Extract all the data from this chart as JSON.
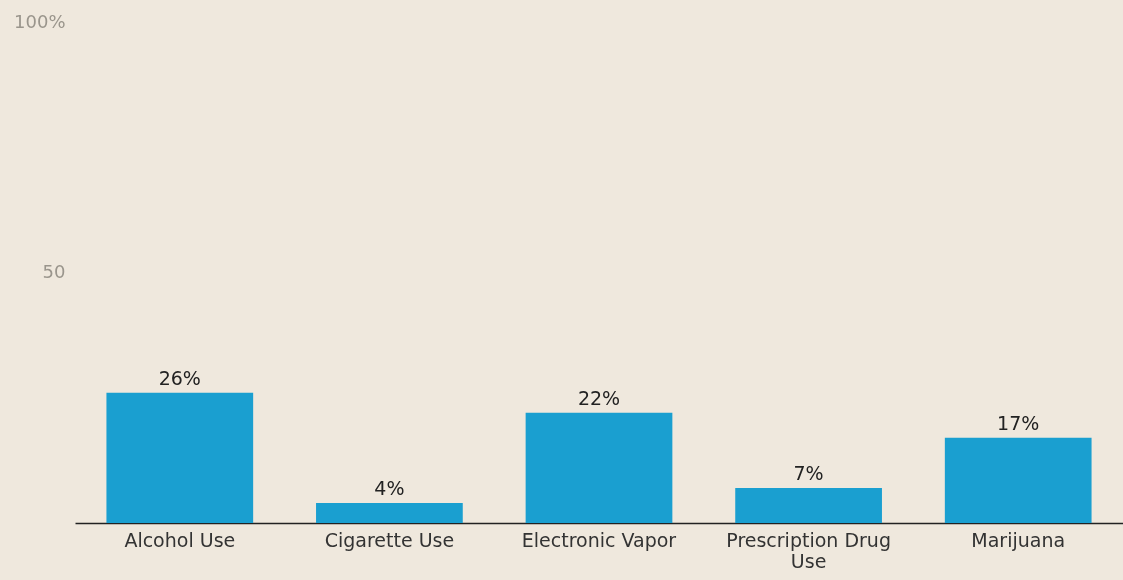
{
  "chart_data": {
    "type": "bar",
    "categories": [
      "Alcohol Use",
      "Cigarette Use",
      "Electronic Vapor",
      "Prescription Drug Use",
      "Marijuana"
    ],
    "values": [
      26,
      4,
      22,
      7,
      17
    ],
    "value_labels": [
      "26%",
      "4%",
      "22%",
      "7%",
      "17%"
    ],
    "color": "#1a9fd0",
    "ylim": [
      0,
      100
    ],
    "yticks": [
      50,
      {
        "value": 100,
        "label": "100%"
      }
    ],
    "grid": false
  }
}
